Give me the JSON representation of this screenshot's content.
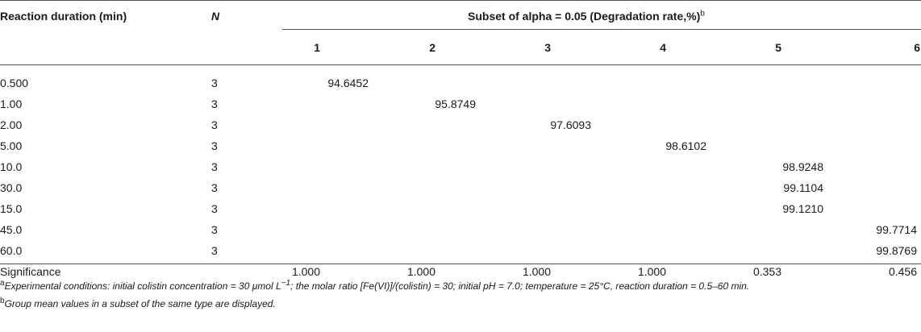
{
  "header": {
    "col_duration": "Reaction duration (min)",
    "col_n": "N",
    "col_subset": "Subset of alpha = 0.05 (Degradation rate,%)",
    "col_subset_sup": "b",
    "subset_numbers": [
      "1",
      "2",
      "3",
      "4",
      "5",
      "6"
    ]
  },
  "rows": [
    {
      "duration": "0.500",
      "n": "3",
      "values": [
        "94.6452",
        "",
        "",
        "",
        "",
        ""
      ]
    },
    {
      "duration": "1.00",
      "n": "3",
      "values": [
        "",
        "95.8749",
        "",
        "",
        "",
        ""
      ]
    },
    {
      "duration": "2.00",
      "n": "3",
      "values": [
        "",
        "",
        "97.6093",
        "",
        "",
        ""
      ]
    },
    {
      "duration": "5.00",
      "n": "3",
      "values": [
        "",
        "",
        "",
        "98.6102",
        "",
        ""
      ]
    },
    {
      "duration": "10.0",
      "n": "3",
      "values": [
        "",
        "",
        "",
        "",
        "98.9248",
        ""
      ]
    },
    {
      "duration": "30.0",
      "n": "3",
      "values": [
        "",
        "",
        "",
        "",
        "99.1104",
        ""
      ]
    },
    {
      "duration": "15.0",
      "n": "3",
      "values": [
        "",
        "",
        "",
        "",
        "99.1210",
        ""
      ]
    },
    {
      "duration": "45.0",
      "n": "3",
      "values": [
        "",
        "",
        "",
        "",
        "",
        "99.7714"
      ]
    },
    {
      "duration": "60.0",
      "n": "3",
      "values": [
        "",
        "",
        "",
        "",
        "",
        "99.8769"
      ]
    }
  ],
  "significance": {
    "label": "Significance",
    "values": [
      "1.000",
      "1.000",
      "1.000",
      "1.000",
      "0.353",
      "0.456"
    ]
  },
  "footnotes": {
    "a_mark": "a",
    "a_text": "Experimental conditions: initial colistin concentration = 30 μmol L",
    "a_exp": "−1",
    "a_rest": "; the molar ratio [Fe(VI)]/(colistin) = 30; initial pH = 7.0; temperature = 25°C, reaction duration = 0.5–60 min.",
    "b_mark": "b",
    "b_text": "Group mean values in a subset of the same type are displayed."
  }
}
